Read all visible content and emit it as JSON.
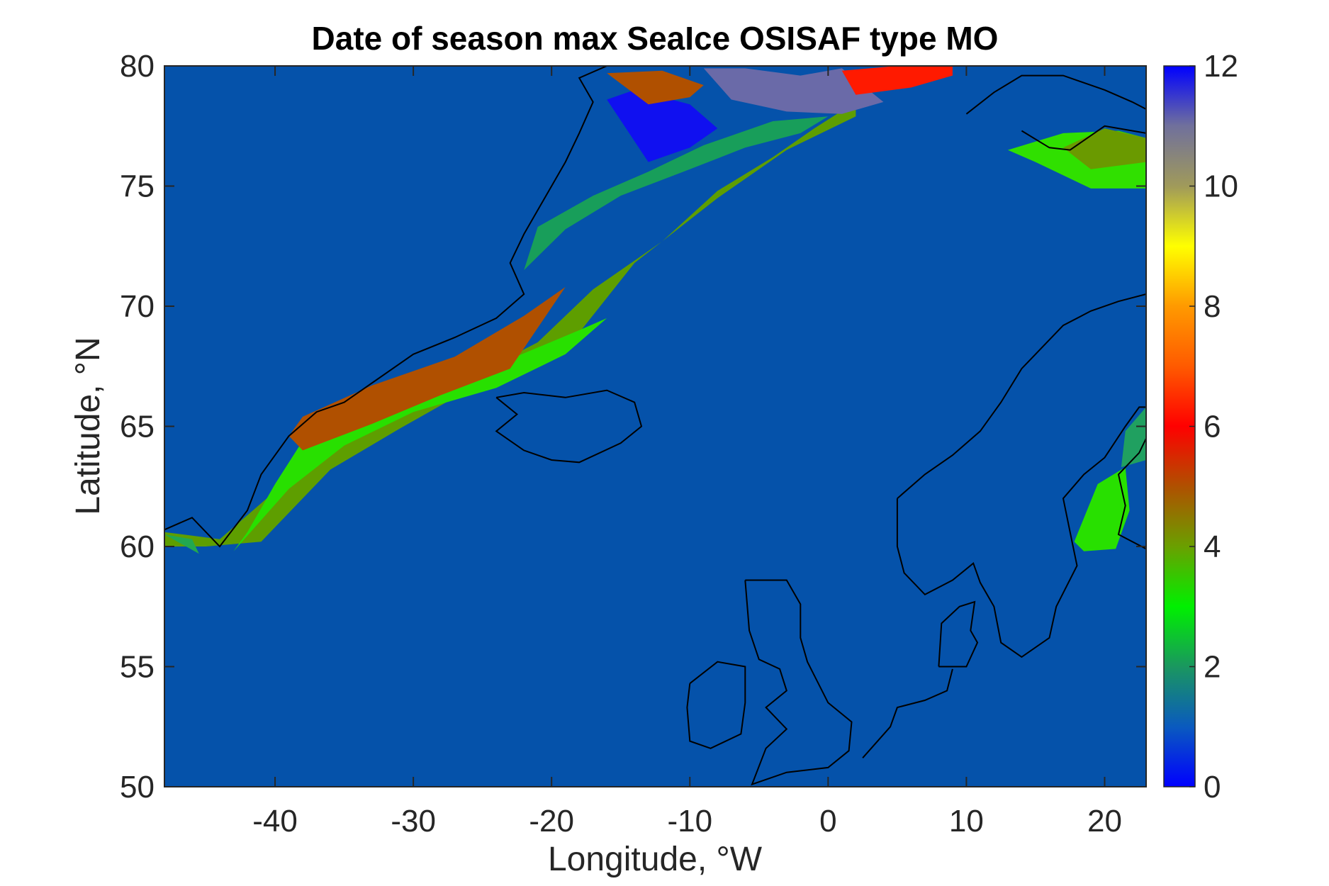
{
  "chart_data": {
    "type": "heatmap",
    "title": "Date of season max SeaIce OSISAF type MO",
    "xlabel": "Longitude, °W",
    "ylabel": "Latitude, °N",
    "xlim": [
      -48,
      23
    ],
    "ylim": [
      50,
      80
    ],
    "x_ticks": [
      -40,
      -30,
      -20,
      -10,
      0,
      10,
      20
    ],
    "x_tick_labels": [
      "-40",
      "-30",
      "-20",
      "-10",
      "0",
      "10",
      "20"
    ],
    "y_ticks": [
      50,
      55,
      60,
      65,
      70,
      75,
      80
    ],
    "y_tick_labels": [
      "50",
      "55",
      "60",
      "65",
      "70",
      "75",
      "80"
    ],
    "colorbar": {
      "range": [
        0,
        12
      ],
      "ticks": [
        0,
        2,
        4,
        6,
        8,
        10,
        12
      ],
      "tick_labels": [
        "0",
        "2",
        "4",
        "6",
        "8",
        "10",
        "12"
      ],
      "colors": [
        "#0000ff",
        "#0a5abf",
        "#1a9660",
        "#00f000",
        "#3cd400",
        "#6aa000",
        "#b05000",
        "#ff0000",
        "#ff9000",
        "#ffff00",
        "#a09a5a",
        "#70709c",
        "#0000ff"
      ]
    },
    "background_value": 1,
    "background_color": "#0552aa",
    "regions": [
      {
        "name": "East Greenland current band",
        "value": 4,
        "color": "#5e9e00",
        "lon": [
          -48,
          -44,
          -40,
          -37,
          -33,
          -28,
          -25,
          -21,
          -17,
          -12,
          -8,
          -4,
          -1,
          2,
          2,
          -3,
          -8,
          -14,
          -18,
          -22,
          -27,
          -31,
          -36,
          -41,
          -45,
          -48
        ],
        "lat": [
          60.6,
          60.3,
          62.3,
          64.3,
          65.4,
          66.6,
          67.3,
          68.5,
          70.7,
          72.7,
          74.8,
          76.2,
          77.4,
          78.5,
          77.9,
          76.5,
          74.5,
          71.8,
          68.9,
          67.3,
          66.2,
          64.9,
          63.2,
          60.2,
          60.0,
          60.0
        ]
      },
      {
        "name": "Outer green margin",
        "value": 3,
        "color": "#28e000",
        "lon": [
          -16,
          -18,
          -23,
          -29,
          -34,
          -38,
          -40,
          -42,
          -43,
          -39,
          -35,
          -30,
          -24,
          -19,
          -16
        ],
        "lat": [
          69.5,
          69.0,
          67.8,
          66.6,
          65.6,
          64.4,
          62.6,
          60.6,
          59.8,
          62.4,
          64.2,
          65.6,
          66.6,
          68.0,
          69.5
        ]
      },
      {
        "name": "Inner brown core",
        "value": 5,
        "color": "#b05000",
        "lon": [
          -19,
          -22,
          -27,
          -33,
          -38,
          -39,
          -38,
          -33,
          -28,
          -23,
          -19
        ],
        "lat": [
          70.8,
          69.6,
          67.9,
          66.7,
          65.4,
          64.6,
          64.0,
          65.1,
          66.3,
          67.4,
          70.8
        ]
      },
      {
        "name": "Shelf dark green",
        "value": 2,
        "color": "#189e5a",
        "lon": [
          -22,
          -19,
          -15,
          -10,
          -6,
          -2,
          0,
          -4,
          -9,
          -13,
          -17,
          -21,
          -22
        ],
        "lat": [
          71.5,
          73.2,
          74.6,
          75.7,
          76.6,
          77.2,
          77.9,
          77.7,
          76.7,
          75.6,
          74.6,
          73.3,
          71.5
        ]
      },
      {
        "name": "Northern blue",
        "value": 12,
        "color": "#1010f0",
        "lon": [
          -16,
          -14,
          -10,
          -8,
          -10,
          -13,
          -16
        ],
        "lat": [
          78.6,
          79.0,
          78.4,
          77.4,
          76.6,
          76.0,
          78.6
        ]
      },
      {
        "name": "Northern slate",
        "value": 11,
        "color": "#6a6aa8",
        "lon": [
          -9,
          -6,
          -2,
          1,
          4,
          1,
          -3,
          -7,
          -9
        ],
        "lat": [
          79.9,
          79.9,
          79.6,
          79.9,
          78.5,
          78.0,
          78.1,
          78.6,
          79.9
        ]
      },
      {
        "name": "Northern brown",
        "value": 5,
        "color": "#b05000",
        "lon": [
          -16,
          -12,
          -9,
          -10,
          -13,
          -16
        ],
        "lat": [
          79.7,
          79.8,
          79.2,
          78.7,
          78.4,
          79.7
        ]
      },
      {
        "name": "Fram strait red",
        "value": 6,
        "color": "#ff1a00",
        "lon": [
          1,
          5,
          9,
          9,
          6,
          2,
          1
        ],
        "lat": [
          79.8,
          80.0,
          80.0,
          79.6,
          79.1,
          78.8,
          79.8
        ]
      },
      {
        "name": "Svalbard south green",
        "value": 3,
        "color": "#30e000",
        "lon": [
          13,
          17,
          21,
          23,
          23,
          19,
          15,
          13
        ],
        "lat": [
          76.5,
          77.2,
          77.3,
          77.0,
          74.9,
          74.9,
          76.0,
          76.5
        ]
      },
      {
        "name": "Svalbard olive",
        "value": 4,
        "color": "#6a9a00",
        "lon": [
          17,
          20,
          23,
          23,
          19,
          17
        ],
        "lat": [
          76.6,
          77.4,
          77.0,
          76.0,
          75.7,
          76.6
        ]
      },
      {
        "name": "Gulf of Bothnia green",
        "value": 3,
        "color": "#28e000",
        "lon": [
          17.8,
          19.5,
          21.5,
          21.8,
          20.8,
          18.5,
          17.8
        ],
        "lat": [
          60.2,
          62.6,
          63.3,
          61.5,
          59.9,
          59.8,
          60.2
        ]
      },
      {
        "name": "Bothnian bay",
        "value": 2,
        "color": "#20a060",
        "lon": [
          21.5,
          23,
          23,
          21.2,
          21.5
        ],
        "lat": [
          64.8,
          65.8,
          63.6,
          63.3,
          64.8
        ]
      },
      {
        "name": "Cape Farewell patch",
        "value": 2,
        "color": "#22a850",
        "lon": [
          -48,
          -46,
          -45.5,
          -48
        ],
        "lat": [
          60.5,
          60.3,
          59.7,
          60.5
        ]
      }
    ]
  }
}
